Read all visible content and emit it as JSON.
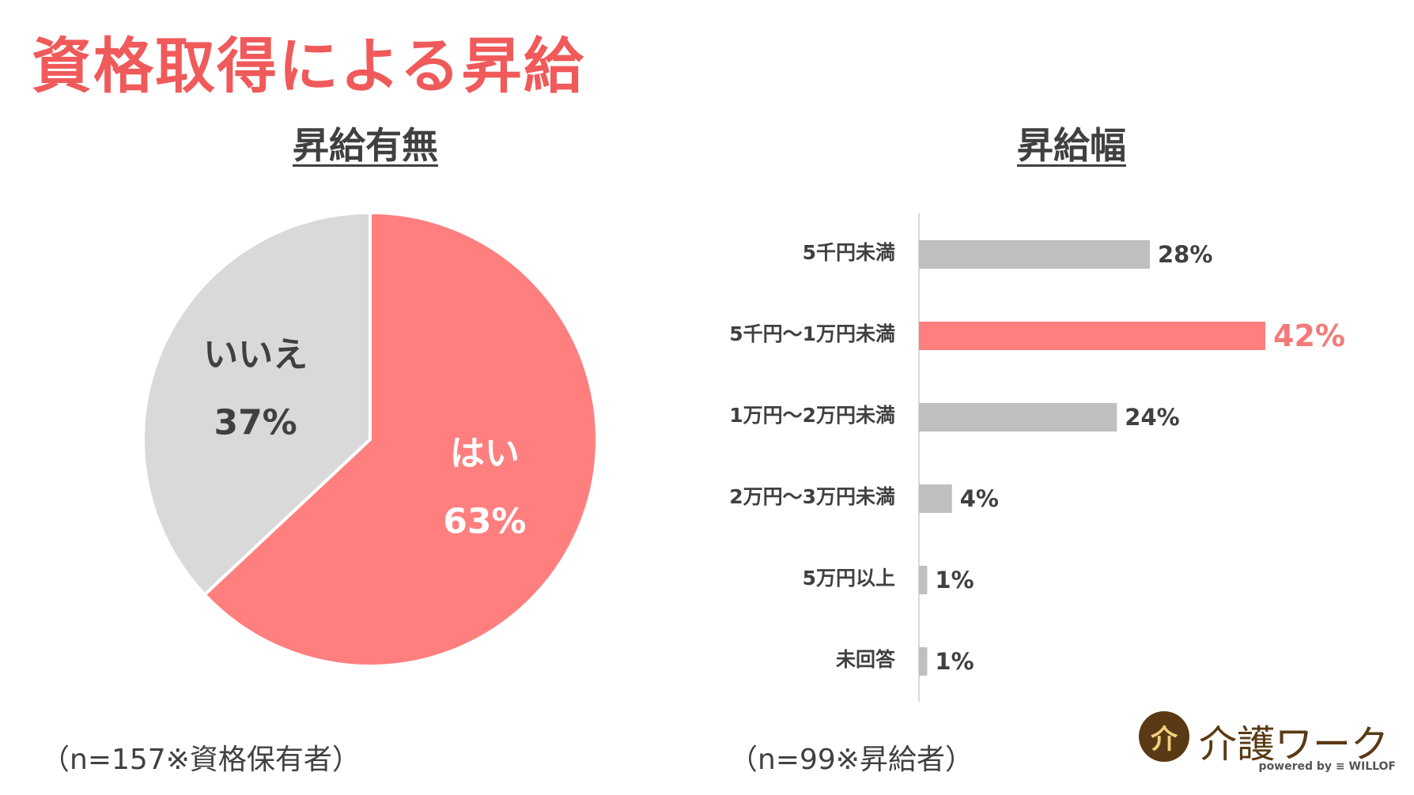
{
  "title": "資格取得による昇給",
  "charts": {
    "pie_title": "昇給有無",
    "bar_title": "昇給幅",
    "pie_note": "（n=157※資格保有者）",
    "bar_note": "（n=99※昇給者）"
  },
  "chart_data": [
    {
      "type": "pie",
      "title": "昇給有無",
      "slices": [
        {
          "label": "はい",
          "value": 63,
          "value_label": "63%",
          "color": "#ff7f7f",
          "label_color": "#ffffff"
        },
        {
          "label": "いいえ",
          "value": 37,
          "value_label": "37%",
          "color": "#d9d9d9",
          "label_color": "#404040"
        }
      ],
      "start": "12 o'clock, clockwise"
    },
    {
      "type": "bar",
      "orientation": "horizontal",
      "title": "昇給幅",
      "categories": [
        "5千円未満",
        "5千円～1万円未満",
        "1万円～2万円未満",
        "2万円～3万円未満",
        "5万円以上",
        "未回答"
      ],
      "values": [
        28,
        42,
        24,
        4,
        1,
        1
      ],
      "value_labels": [
        "28%",
        "42%",
        "24%",
        "4%",
        "1%",
        "1%"
      ],
      "highlight_index": 1,
      "bar_color": "#bfbfbf",
      "highlight_color": "#ff7f7f",
      "xlim": [
        0,
        50
      ]
    }
  ],
  "logo": {
    "mark": "介",
    "text": "介護ワーク",
    "sub": "powered by ≡ WILLOF"
  }
}
